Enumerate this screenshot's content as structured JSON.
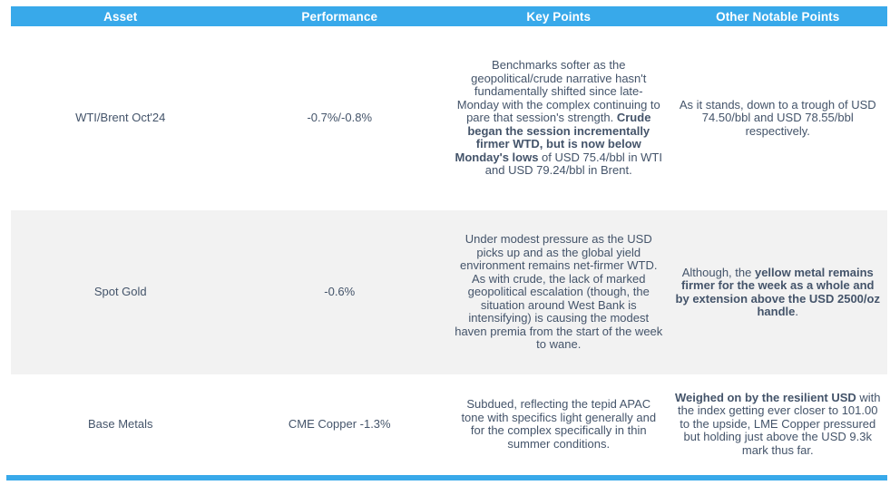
{
  "theme": {
    "header_bg": "#38a9ea",
    "header_text_color": "#ffffff",
    "alt_row_bg": "#f2f2f2",
    "body_text_color": "#44546a",
    "bottom_rule_color": "#38a9ea"
  },
  "table": {
    "headers": [
      "Asset",
      "Performance",
      "Key Points",
      "Other Notable Points"
    ],
    "rows": [
      {
        "asset": "WTI/Brent Oct'24",
        "performance": "-0.7%/-0.8%",
        "key_points": [
          {
            "t": "Benchmarks softer as the geopolitical/crude narrative hasn't fundamentally shifted since late-Monday with the complex continuing to pare that session's strength. ",
            "b": false
          },
          {
            "t": "Crude began the session incrementally firmer WTD, but is now below Monday's lows",
            "b": true
          },
          {
            "t": " of USD 75.4/bbl in WTI and USD 79.24/bbl in Brent.",
            "b": false
          }
        ],
        "other_notable_points": [
          {
            "t": "As it stands, down to a trough of USD 74.50/bbl and USD 78.55/bbl respectively.",
            "b": false
          }
        ]
      },
      {
        "asset": "Spot Gold",
        "performance": "-0.6%",
        "key_points": [
          {
            "t": "Under modest pressure as the USD picks up and as the global yield environment remains net-firmer WTD. As with crude, the lack of marked geopolitical escalation (though, the situation around West Bank is intensifying) is causing the modest haven premia from the start of the week to wane.",
            "b": false
          }
        ],
        "other_notable_points": [
          {
            "t": "Although, the ",
            "b": false
          },
          {
            "t": "yellow metal remains firmer for the week as a whole and by extension above the USD 2500/oz handle",
            "b": true
          },
          {
            "t": ".",
            "b": false
          }
        ]
      },
      {
        "asset": "Base Metals",
        "performance": "CME Copper -1.3%",
        "key_points": [
          {
            "t": "Subdued, reflecting the tepid APAC tone with specifics light generally and for the complex specifically in thin summer conditions.",
            "b": false
          }
        ],
        "other_notable_points": [
          {
            "t": "Weighed on by the resilient USD",
            "b": true
          },
          {
            "t": " with the index getting ever closer to 101.00 to the upside, LME Copper pressured but holding just above the USD 9.3k mark thus far.",
            "b": false
          }
        ]
      }
    ]
  }
}
